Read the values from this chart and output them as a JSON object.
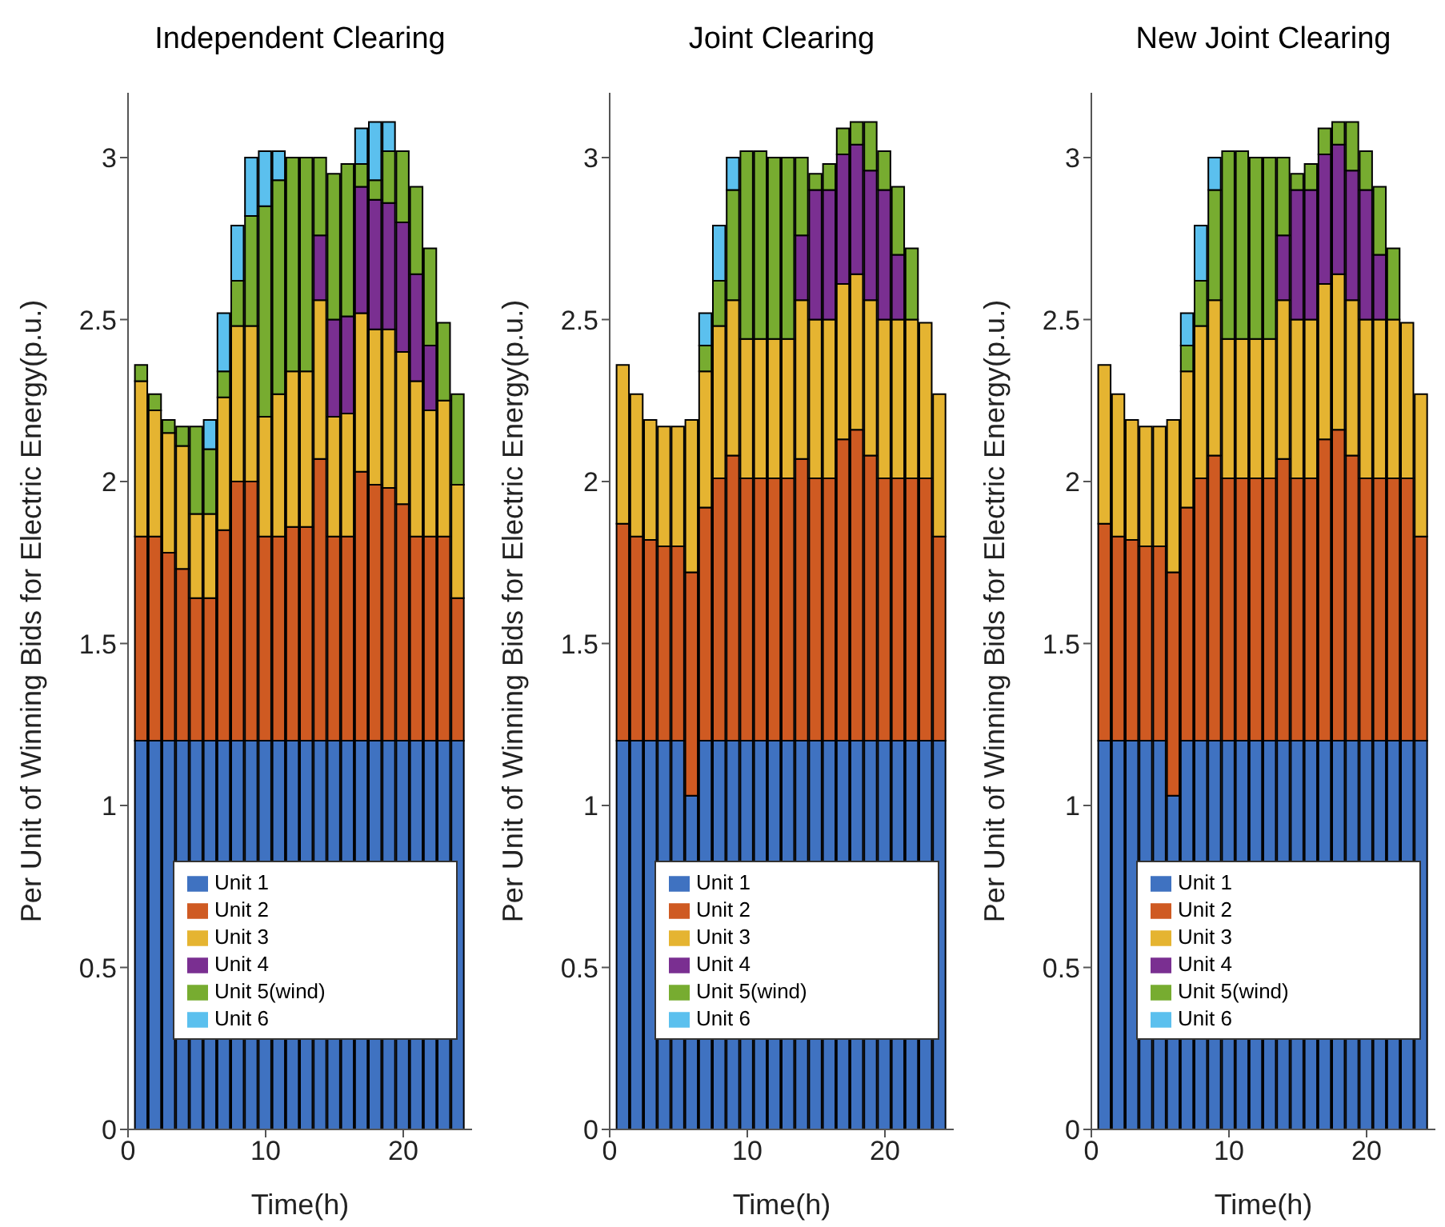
{
  "chart_data": [
    {
      "type": "bar",
      "stacked": true,
      "title": "Independent Clearing",
      "xlabel": "Time(h)",
      "ylabel": "Per Unit of Winning Bids for Electric Energy(p.u.)",
      "x": [
        1,
        2,
        3,
        4,
        5,
        6,
        7,
        8,
        9,
        10,
        11,
        12,
        13,
        14,
        15,
        16,
        17,
        18,
        19,
        20,
        21,
        22,
        23,
        24
      ],
      "xlim": [
        0,
        25
      ],
      "xticks": [
        0,
        10,
        20
      ],
      "ylim": [
        0,
        3.2
      ],
      "yticks": [
        0,
        0.5,
        1,
        1.5,
        2,
        2.5,
        3
      ],
      "legend": "bottom",
      "series": [
        {
          "name": "Unit 1",
          "color": "#3f72c1",
          "values": [
            1.2,
            1.2,
            1.2,
            1.2,
            1.2,
            1.2,
            1.2,
            1.2,
            1.2,
            1.2,
            1.2,
            1.2,
            1.2,
            1.2,
            1.2,
            1.2,
            1.2,
            1.2,
            1.2,
            1.2,
            1.2,
            1.2,
            1.2,
            1.2
          ]
        },
        {
          "name": "Unit 2",
          "color": "#cf5a22",
          "values": [
            0.63,
            0.63,
            0.58,
            0.53,
            0.44,
            0.44,
            0.65,
            0.8,
            0.8,
            0.63,
            0.63,
            0.66,
            0.66,
            0.87,
            0.63,
            0.63,
            0.83,
            0.79,
            0.78,
            0.73,
            0.63,
            0.63,
            0.63,
            0.44
          ]
        },
        {
          "name": "Unit 3",
          "color": "#e5b431",
          "values": [
            0.48,
            0.39,
            0.37,
            0.38,
            0.26,
            0.26,
            0.41,
            0.48,
            0.48,
            0.37,
            0.44,
            0.48,
            0.48,
            0.49,
            0.37,
            0.38,
            0.49,
            0.48,
            0.49,
            0.47,
            0.48,
            0.39,
            0.42,
            0.35
          ]
        },
        {
          "name": "Unit 4",
          "color": "#7a2f91",
          "values": [
            null,
            null,
            null,
            null,
            null,
            null,
            null,
            null,
            null,
            null,
            null,
            null,
            null,
            0.2,
            0.3,
            0.3,
            0.39,
            0.4,
            0.39,
            0.4,
            0.33,
            0.2,
            null,
            null
          ]
        },
        {
          "name": "Unit 5(wind)",
          "color": "#77ac30",
          "values": [
            0.05,
            0.05,
            0.04,
            0.06,
            0.27,
            0.2,
            0.08,
            0.14,
            0.34,
            0.65,
            0.66,
            0.66,
            0.66,
            0.24,
            0.45,
            0.47,
            0.07,
            0.06,
            0.16,
            0.22,
            0.27,
            0.3,
            0.24,
            0.28
          ]
        },
        {
          "name": "Unit 6",
          "color": "#5bc0ee",
          "values": [
            null,
            null,
            null,
            null,
            null,
            0.09,
            0.18,
            0.17,
            0.18,
            0.17,
            0.09,
            null,
            null,
            null,
            null,
            null,
            0.11,
            0.18,
            0.09,
            null,
            null,
            null,
            null,
            null
          ]
        }
      ]
    },
    {
      "type": "bar",
      "stacked": true,
      "title": "Joint Clearing",
      "xlabel": "Time(h)",
      "ylabel": "Per Unit of Winning Bids for Electric Energy(p.u.)",
      "x": [
        1,
        2,
        3,
        4,
        5,
        6,
        7,
        8,
        9,
        10,
        11,
        12,
        13,
        14,
        15,
        16,
        17,
        18,
        19,
        20,
        21,
        22,
        23,
        24
      ],
      "xlim": [
        0,
        25
      ],
      "xticks": [
        0,
        10,
        20
      ],
      "ylim": [
        0,
        3.2
      ],
      "yticks": [
        0,
        0.5,
        1,
        1.5,
        2,
        2.5,
        3
      ],
      "legend": "bottom",
      "series": [
        {
          "name": "Unit 1",
          "color": "#3f72c1",
          "values": [
            1.2,
            1.2,
            1.2,
            1.2,
            1.2,
            1.03,
            1.2,
            1.2,
            1.2,
            1.2,
            1.2,
            1.2,
            1.2,
            1.2,
            1.2,
            1.2,
            1.2,
            1.2,
            1.2,
            1.2,
            1.2,
            1.2,
            1.2,
            1.2
          ]
        },
        {
          "name": "Unit 2",
          "color": "#cf5a22",
          "values": [
            0.67,
            0.63,
            0.62,
            0.6,
            0.6,
            0.69,
            0.72,
            0.81,
            0.88,
            0.81,
            0.81,
            0.81,
            0.81,
            0.87,
            0.81,
            0.81,
            0.93,
            0.96,
            0.88,
            0.81,
            0.81,
            0.81,
            0.81,
            0.63
          ]
        },
        {
          "name": "Unit 3",
          "color": "#e5b431",
          "values": [
            0.49,
            0.44,
            0.37,
            0.37,
            0.37,
            0.47,
            0.42,
            0.47,
            0.48,
            0.43,
            0.43,
            0.43,
            0.43,
            0.49,
            0.49,
            0.49,
            0.48,
            0.48,
            0.48,
            0.49,
            0.49,
            0.49,
            0.48,
            0.44
          ]
        },
        {
          "name": "Unit 4",
          "color": "#7a2f91",
          "values": [
            null,
            null,
            null,
            null,
            null,
            null,
            null,
            null,
            null,
            null,
            null,
            null,
            null,
            0.2,
            0.4,
            0.4,
            0.4,
            0.4,
            0.4,
            0.4,
            0.2,
            null,
            null,
            null
          ]
        },
        {
          "name": "Unit 5(wind)",
          "color": "#77ac30",
          "values": [
            null,
            null,
            null,
            null,
            null,
            null,
            0.08,
            0.14,
            0.34,
            0.58,
            0.58,
            0.56,
            0.56,
            0.24,
            0.05,
            0.08,
            0.08,
            0.07,
            0.15,
            0.12,
            0.21,
            0.22,
            null,
            null
          ]
        },
        {
          "name": "Unit 6",
          "color": "#5bc0ee",
          "values": [
            null,
            null,
            null,
            null,
            null,
            null,
            0.1,
            0.17,
            0.1,
            null,
            null,
            null,
            null,
            null,
            null,
            null,
            null,
            null,
            null,
            null,
            null,
            null,
            null,
            null
          ]
        }
      ]
    },
    {
      "type": "bar",
      "stacked": true,
      "title": "New Joint Clearing",
      "xlabel": "Time(h)",
      "ylabel": "Per Unit of Winning Bids for Electric Energy(p.u.)",
      "x": [
        1,
        2,
        3,
        4,
        5,
        6,
        7,
        8,
        9,
        10,
        11,
        12,
        13,
        14,
        15,
        16,
        17,
        18,
        19,
        20,
        21,
        22,
        23,
        24
      ],
      "xlim": [
        0,
        25
      ],
      "xticks": [
        0,
        10,
        20
      ],
      "ylim": [
        0,
        3.2
      ],
      "yticks": [
        0,
        0.5,
        1,
        1.5,
        2,
        2.5,
        3
      ],
      "legend": "bottom",
      "series": [
        {
          "name": "Unit 1",
          "color": "#3f72c1",
          "values": [
            1.2,
            1.2,
            1.2,
            1.2,
            1.2,
            1.03,
            1.2,
            1.2,
            1.2,
            1.2,
            1.2,
            1.2,
            1.2,
            1.2,
            1.2,
            1.2,
            1.2,
            1.2,
            1.2,
            1.2,
            1.2,
            1.2,
            1.2,
            1.2
          ]
        },
        {
          "name": "Unit 2",
          "color": "#cf5a22",
          "values": [
            0.67,
            0.63,
            0.62,
            0.6,
            0.6,
            0.69,
            0.72,
            0.81,
            0.88,
            0.81,
            0.81,
            0.81,
            0.81,
            0.87,
            0.81,
            0.81,
            0.93,
            0.96,
            0.88,
            0.81,
            0.81,
            0.81,
            0.81,
            0.63
          ]
        },
        {
          "name": "Unit 3",
          "color": "#e5b431",
          "values": [
            0.49,
            0.44,
            0.37,
            0.37,
            0.37,
            0.47,
            0.42,
            0.47,
            0.48,
            0.43,
            0.43,
            0.43,
            0.43,
            0.49,
            0.49,
            0.49,
            0.48,
            0.48,
            0.48,
            0.49,
            0.49,
            0.49,
            0.48,
            0.44
          ]
        },
        {
          "name": "Unit 4",
          "color": "#7a2f91",
          "values": [
            null,
            null,
            null,
            null,
            null,
            null,
            null,
            null,
            null,
            null,
            null,
            null,
            null,
            0.2,
            0.4,
            0.4,
            0.4,
            0.4,
            0.4,
            0.4,
            0.2,
            null,
            null,
            null
          ]
        },
        {
          "name": "Unit 5(wind)",
          "color": "#77ac30",
          "values": [
            null,
            null,
            null,
            null,
            null,
            null,
            0.08,
            0.14,
            0.34,
            0.58,
            0.58,
            0.56,
            0.56,
            0.24,
            0.05,
            0.08,
            0.08,
            0.07,
            0.15,
            0.12,
            0.21,
            0.22,
            null,
            null
          ]
        },
        {
          "name": "Unit 6",
          "color": "#5bc0ee",
          "values": [
            null,
            null,
            null,
            null,
            null,
            null,
            0.1,
            0.17,
            0.1,
            null,
            null,
            null,
            null,
            null,
            null,
            null,
            null,
            null,
            null,
            null,
            null,
            null,
            null,
            null
          ]
        }
      ]
    }
  ]
}
